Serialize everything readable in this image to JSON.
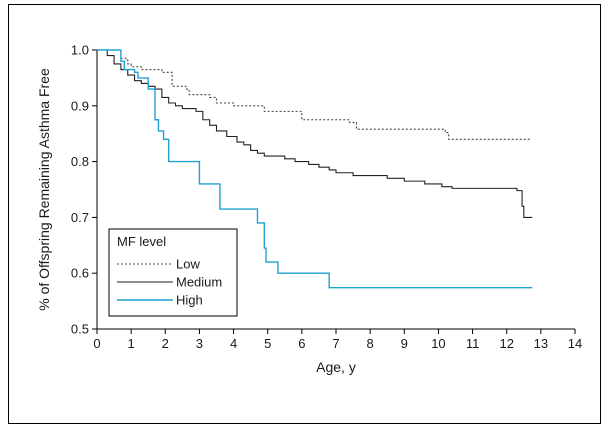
{
  "chart_data": {
    "type": "line",
    "subtype": "step",
    "xlabel": "Age, y",
    "ylabel": "% of Offspring Remaining Asthma Free",
    "xlim": [
      0,
      14
    ],
    "ylim": [
      0.5,
      1.0
    ],
    "xticks": [
      "0",
      "1",
      "2",
      "3",
      "4",
      "5",
      "6",
      "7",
      "8",
      "9",
      "10",
      "11",
      "12",
      "13",
      "14"
    ],
    "yticks": [
      "0.5",
      "0.6",
      "0.7",
      "0.8",
      "0.9",
      "1.0"
    ],
    "grid": false,
    "legend": {
      "title": "MF level",
      "position": "bottom-left"
    },
    "series": [
      {
        "name": "Low",
        "color": "#444444",
        "style": "dotted",
        "points": [
          [
            0,
            1.0
          ],
          [
            0.6,
            1.0
          ],
          [
            0.7,
            0.985
          ],
          [
            0.9,
            0.975
          ],
          [
            1.0,
            0.97
          ],
          [
            1.3,
            0.965
          ],
          [
            1.9,
            0.96
          ],
          [
            2.2,
            0.935
          ],
          [
            2.6,
            0.93
          ],
          [
            2.7,
            0.92
          ],
          [
            3.3,
            0.915
          ],
          [
            3.5,
            0.905
          ],
          [
            4.0,
            0.9
          ],
          [
            4.9,
            0.89
          ],
          [
            6.0,
            0.875
          ],
          [
            7.4,
            0.87
          ],
          [
            7.6,
            0.858
          ],
          [
            10.2,
            0.852
          ],
          [
            10.3,
            0.84
          ],
          [
            12.7,
            0.84
          ]
        ]
      },
      {
        "name": "Medium",
        "color": "#222222",
        "style": "solid",
        "points": [
          [
            0,
            1.0
          ],
          [
            0.3,
            0.99
          ],
          [
            0.5,
            0.975
          ],
          [
            0.7,
            0.965
          ],
          [
            0.9,
            0.955
          ],
          [
            1.1,
            0.945
          ],
          [
            1.3,
            0.94
          ],
          [
            1.5,
            0.935
          ],
          [
            1.7,
            0.93
          ],
          [
            1.9,
            0.915
          ],
          [
            2.1,
            0.905
          ],
          [
            2.3,
            0.9
          ],
          [
            2.5,
            0.895
          ],
          [
            2.9,
            0.89
          ],
          [
            3.1,
            0.875
          ],
          [
            3.3,
            0.865
          ],
          [
            3.5,
            0.855
          ],
          [
            3.8,
            0.845
          ],
          [
            4.1,
            0.835
          ],
          [
            4.3,
            0.83
          ],
          [
            4.5,
            0.82
          ],
          [
            4.7,
            0.815
          ],
          [
            4.9,
            0.81
          ],
          [
            5.5,
            0.805
          ],
          [
            5.8,
            0.8
          ],
          [
            6.2,
            0.795
          ],
          [
            6.5,
            0.79
          ],
          [
            6.8,
            0.785
          ],
          [
            7.0,
            0.78
          ],
          [
            7.5,
            0.775
          ],
          [
            8.5,
            0.77
          ],
          [
            9.0,
            0.765
          ],
          [
            9.6,
            0.76
          ],
          [
            10.1,
            0.755
          ],
          [
            10.4,
            0.752
          ],
          [
            12.3,
            0.748
          ],
          [
            12.45,
            0.72
          ],
          [
            12.5,
            0.7
          ],
          [
            12.75,
            0.7
          ]
        ]
      },
      {
        "name": "High",
        "color": "#1fa3d4",
        "style": "solid",
        "points": [
          [
            0,
            1.0
          ],
          [
            0.6,
            1.0
          ],
          [
            0.7,
            0.98
          ],
          [
            0.8,
            0.965
          ],
          [
            1.1,
            0.96
          ],
          [
            1.2,
            0.95
          ],
          [
            1.5,
            0.93
          ],
          [
            1.7,
            0.875
          ],
          [
            1.8,
            0.855
          ],
          [
            1.95,
            0.84
          ],
          [
            2.1,
            0.8
          ],
          [
            3.0,
            0.76
          ],
          [
            3.5,
            0.76
          ],
          [
            3.6,
            0.715
          ],
          [
            4.7,
            0.69
          ],
          [
            4.9,
            0.645
          ],
          [
            4.95,
            0.62
          ],
          [
            5.3,
            0.6
          ],
          [
            6.8,
            0.574
          ],
          [
            12.75,
            0.574
          ]
        ]
      }
    ]
  }
}
